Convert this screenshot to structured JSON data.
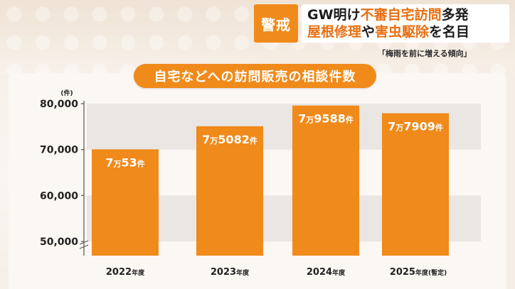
{
  "alert": {
    "badge": "警戒",
    "headline_line1_a": "GW明け",
    "headline_line1_b": "不審自宅訪問",
    "headline_line1_c": "多発",
    "headline_line2_a": "屋根修理",
    "headline_line2_b": "や",
    "headline_line2_c": "害虫駆除",
    "headline_line2_d": "を名目",
    "subtag": "「梅雨を前に増える傾向」",
    "accent_color": "#f08a1a",
    "highlight_color": "#e86f12"
  },
  "chart_data": {
    "type": "bar",
    "title": "自宅などへの訪問販売の相談件数",
    "unit": "(件)",
    "categories": [
      "2022年度",
      "2023年度",
      "2024年度",
      "2025年度"
    ],
    "category_notes": [
      "",
      "",
      "",
      "(暫定)"
    ],
    "values": [
      70053,
      75082,
      79588,
      77909
    ],
    "value_labels": [
      {
        "prefix": "7",
        "man": "万",
        "rest": "53",
        "ken": "件"
      },
      {
        "prefix": "7",
        "man": "万",
        "rest": "5082",
        "ken": "件"
      },
      {
        "prefix": "7",
        "man": "万",
        "rest": "9588",
        "ken": "件"
      },
      {
        "prefix": "7",
        "man": "万",
        "rest": "7909",
        "ken": "件"
      }
    ],
    "yticks": [
      50000,
      60000,
      70000,
      80000
    ],
    "ytick_labels": [
      "50,000",
      "60,000",
      "70,000",
      "80,000"
    ],
    "ylim": [
      45000,
      81000
    ],
    "axis_break": true,
    "bar_color": "#f08a1a",
    "band_color": "#e9e6e3"
  }
}
